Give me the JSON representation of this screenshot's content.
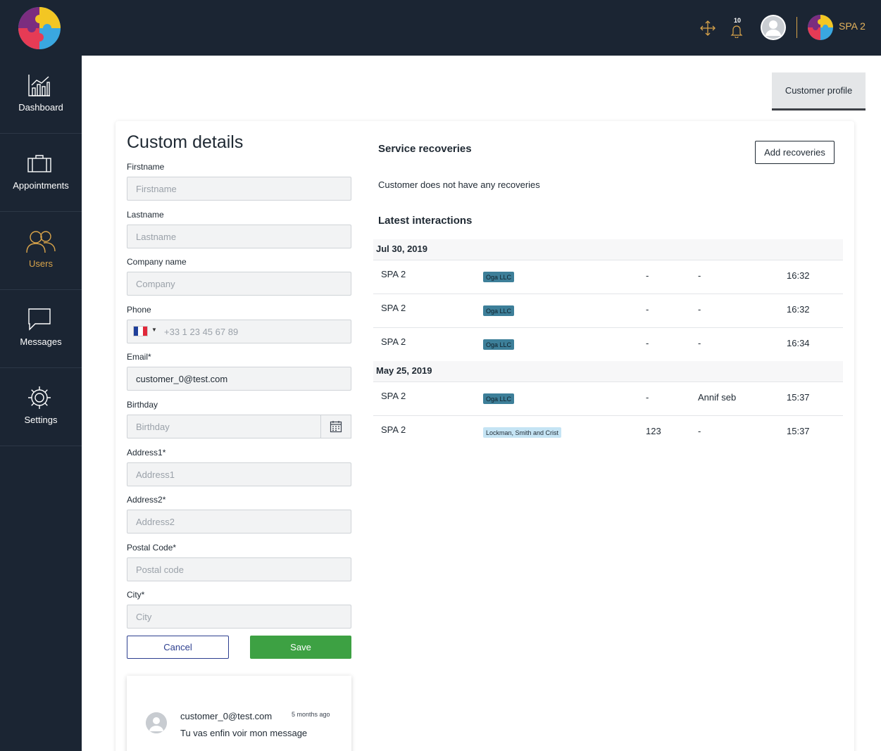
{
  "header": {
    "notifications_count": "10",
    "org_label": "SPA 2"
  },
  "sidebar": {
    "items": [
      {
        "label": "Dashboard",
        "icon": "chart-icon",
        "active": false
      },
      {
        "label": "Appointments",
        "icon": "briefcase-icon",
        "active": false
      },
      {
        "label": "Users",
        "icon": "users-icon",
        "active": true
      },
      {
        "label": "Messages",
        "icon": "chat-bubble-icon",
        "active": false
      },
      {
        "label": "Settings",
        "icon": "gear-icon",
        "active": false
      }
    ]
  },
  "tabs": {
    "customer_profile": "Customer profile"
  },
  "form": {
    "title": "Custom details",
    "firstname": {
      "label": "Firstname",
      "placeholder": "Firstname",
      "value": ""
    },
    "lastname": {
      "label": "Lastname",
      "placeholder": "Lastname",
      "value": ""
    },
    "company": {
      "label": "Company name",
      "placeholder": "Company",
      "value": ""
    },
    "phone": {
      "label": "Phone",
      "placeholder": "+33 1 23 45 67 89",
      "value": "",
      "country": "France"
    },
    "email": {
      "label": "Email*",
      "placeholder": "",
      "value": "customer_0@test.com"
    },
    "birthday": {
      "label": "Birthday",
      "placeholder": "Birthday",
      "value": ""
    },
    "address1": {
      "label": "Address1*",
      "placeholder": "Address1",
      "value": ""
    },
    "address2": {
      "label": "Address2*",
      "placeholder": "Address2",
      "value": ""
    },
    "postal_code": {
      "label": "Postal Code*",
      "placeholder": "Postal code",
      "value": ""
    },
    "city": {
      "label": "City*",
      "placeholder": "City",
      "value": ""
    },
    "cancel_label": "Cancel",
    "save_label": "Save"
  },
  "message": {
    "author": "customer_0@test.com",
    "time": "5 months ago",
    "text": "Tu vas enfin voir mon message"
  },
  "recoveries": {
    "title": "Service recoveries",
    "add_label": "Add recoveries",
    "empty_text": "Customer does not have any recoveries"
  },
  "interactions": {
    "title": "Latest interactions",
    "groups": [
      {
        "date": "Jul 30, 2019",
        "rows": [
          {
            "name": "SPA 2",
            "company": "Oga LLC",
            "col3": "-",
            "col4": "-",
            "time": "16:32"
          },
          {
            "name": "SPA 2",
            "company": "Oga LLC",
            "col3": "-",
            "col4": "-",
            "time": "16:32"
          },
          {
            "name": "SPA 2",
            "company": "Oga LLC",
            "col3": "-",
            "col4": "-",
            "time": "16:34"
          }
        ]
      },
      {
        "date": "May 25, 2019",
        "rows": [
          {
            "name": "SPA 2",
            "company": "Oga LLC",
            "col3": "-",
            "col4": "Annif seb",
            "time": "15:37"
          },
          {
            "name": "SPA 2",
            "company": "Lockman, Smith and Crist",
            "col3": "123",
            "col4": "-",
            "time": "15:37"
          }
        ]
      }
    ]
  },
  "colors": {
    "sidebar_bg": "#1b2533",
    "accent_gold": "#d9a44a",
    "save_green": "#3da143",
    "cancel_blue": "#2d3f8f"
  }
}
